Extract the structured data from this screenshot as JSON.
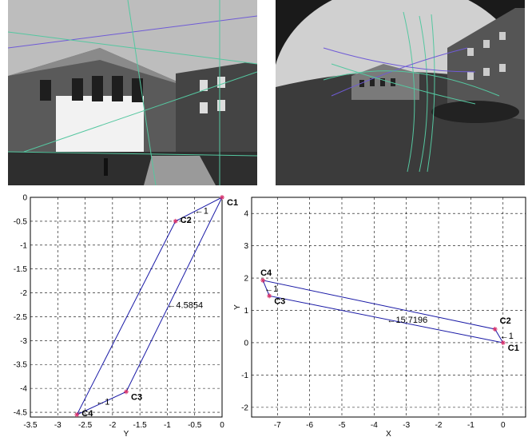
{
  "colors": {
    "line": "#1a1aa6",
    "marker": "#d6336c",
    "grid": "#000000",
    "photo_sky": "#d8d8d8",
    "photo_ground": "#3a3a3a"
  },
  "photos": [
    {
      "name": "perspective-building-photo"
    },
    {
      "name": "fisheye-building-photo"
    }
  ],
  "chart_data": [
    {
      "type": "line",
      "title": "",
      "xlabel": "Y",
      "ylabel": "",
      "xlim": [
        -3.5,
        0
      ],
      "ylim": [
        -4.6,
        0
      ],
      "xticks": [
        "-3.5",
        "-3",
        "-2.5",
        "-2",
        "-1.5",
        "-1",
        "-0.5",
        "0"
      ],
      "yticks": [
        "0",
        "-0.5",
        "-1",
        "-1.5",
        "-2",
        "-2.5",
        "-3",
        "-3.5",
        "-4",
        "-4.5"
      ],
      "grid": true,
      "series": [
        {
          "points": [
            [
              0,
              0
            ],
            [
              -0.85,
              -0.5
            ],
            [
              -2.65,
              -4.55
            ],
            [
              -1.75,
              -4.07
            ],
            [
              0,
              0
            ]
          ]
        }
      ],
      "markers": [
        {
          "label": "C1",
          "x": 0,
          "y": 0
        },
        {
          "label": "C2",
          "x": -0.85,
          "y": -0.5
        },
        {
          "label": "C3",
          "x": -1.75,
          "y": -4.07
        },
        {
          "label": "C4",
          "x": -2.65,
          "y": -4.55
        }
      ],
      "annotations": [
        {
          "text": "←1",
          "x": -0.5,
          "y": -0.28
        },
        {
          "text": "←4.5854",
          "x": -1.0,
          "y": -2.25
        },
        {
          "text": "←1",
          "x": -2.3,
          "y": -4.27
        }
      ]
    },
    {
      "type": "line",
      "title": "",
      "xlabel": "X",
      "ylabel": "Y",
      "xlim": [
        -7.8,
        0.7
      ],
      "ylim": [
        -2.3,
        4.5
      ],
      "xticks": [
        "-7",
        "-6",
        "-5",
        "-4",
        "-3",
        "-2",
        "-1",
        "0"
      ],
      "yticks": [
        "4",
        "3",
        "2",
        "1",
        "0",
        "-1",
        "-2"
      ],
      "grid": true,
      "series": [
        {
          "points": [
            [
              0,
              0
            ],
            [
              -0.25,
              0.42
            ],
            [
              -7.45,
              1.93
            ],
            [
              -7.25,
              1.45
            ],
            [
              0,
              0
            ]
          ]
        }
      ],
      "markers": [
        {
          "label": "C1",
          "x": 0,
          "y": 0
        },
        {
          "label": "C2",
          "x": -0.25,
          "y": 0.42
        },
        {
          "label": "C3",
          "x": -7.25,
          "y": 1.45
        },
        {
          "label": "C4",
          "x": -7.45,
          "y": 1.93
        }
      ],
      "annotations": [
        {
          "text": "←1",
          "x": -0.1,
          "y": 0.22
        },
        {
          "text": "←15.7196",
          "x": -3.6,
          "y": 0.72
        },
        {
          "text": "←1",
          "x": -7.4,
          "y": 1.68
        }
      ]
    }
  ]
}
